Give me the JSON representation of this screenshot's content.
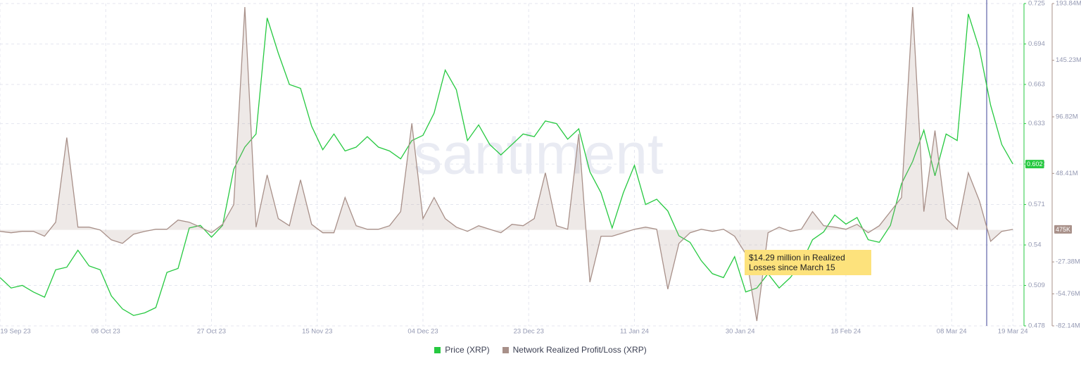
{
  "chart_data": {
    "type": "line",
    "watermark": "santiment",
    "annotation": "$14.29 million in Realized Losses since March 15",
    "x": [
      "2023-09-19",
      "2023-09-21",
      "2023-09-23",
      "2023-09-25",
      "2023-09-27",
      "2023-09-29",
      "2023-10-01",
      "2023-10-03",
      "2023-10-05",
      "2023-10-07",
      "2023-10-09",
      "2023-10-11",
      "2023-10-13",
      "2023-10-15",
      "2023-10-17",
      "2023-10-19",
      "2023-10-21",
      "2023-10-23",
      "2023-10-25",
      "2023-10-27",
      "2023-10-29",
      "2023-10-31",
      "2023-11-02",
      "2023-11-04",
      "2023-11-06",
      "2023-11-08",
      "2023-11-10",
      "2023-11-12",
      "2023-11-14",
      "2023-11-16",
      "2023-11-18",
      "2023-11-20",
      "2023-11-22",
      "2023-11-24",
      "2023-11-26",
      "2023-11-28",
      "2023-11-30",
      "2023-12-02",
      "2023-12-04",
      "2023-12-06",
      "2023-12-08",
      "2023-12-10",
      "2023-12-12",
      "2023-12-14",
      "2023-12-16",
      "2023-12-18",
      "2023-12-20",
      "2023-12-22",
      "2023-12-24",
      "2023-12-26",
      "2023-12-28",
      "2023-12-30",
      "2024-01-01",
      "2024-01-03",
      "2024-01-05",
      "2024-01-07",
      "2024-01-09",
      "2024-01-11",
      "2024-01-13",
      "2024-01-15",
      "2024-01-17",
      "2024-01-19",
      "2024-01-21",
      "2024-01-23",
      "2024-01-25",
      "2024-01-27",
      "2024-01-29",
      "2024-01-31",
      "2024-02-02",
      "2024-02-04",
      "2024-02-06",
      "2024-02-08",
      "2024-02-10",
      "2024-02-12",
      "2024-02-14",
      "2024-02-16",
      "2024-02-18",
      "2024-02-20",
      "2024-02-22",
      "2024-02-24",
      "2024-02-26",
      "2024-02-28",
      "2024-03-01",
      "2024-03-03",
      "2024-03-05",
      "2024-03-07",
      "2024-03-09",
      "2024-03-11",
      "2024-03-13",
      "2024-03-15",
      "2024-03-17",
      "2024-03-19"
    ],
    "series": [
      {
        "name": "Price (XRP)",
        "color": "#26c940",
        "axis": "y",
        "current_label": "0.602",
        "values": [
          0.515,
          0.507,
          0.509,
          0.504,
          0.5,
          0.521,
          0.523,
          0.536,
          0.524,
          0.521,
          0.501,
          0.491,
          0.486,
          0.488,
          0.492,
          0.519,
          0.522,
          0.553,
          0.555,
          0.546,
          0.555,
          0.598,
          0.615,
          0.625,
          0.714,
          0.687,
          0.663,
          0.66,
          0.631,
          0.613,
          0.625,
          0.612,
          0.615,
          0.623,
          0.615,
          0.612,
          0.606,
          0.62,
          0.624,
          0.641,
          0.674,
          0.659,
          0.62,
          0.632,
          0.617,
          0.609,
          0.617,
          0.625,
          0.623,
          0.635,
          0.633,
          0.621,
          0.629,
          0.596,
          0.58,
          0.553,
          0.58,
          0.601,
          0.571,
          0.575,
          0.566,
          0.547,
          0.542,
          0.528,
          0.518,
          0.515,
          0.531,
          0.504,
          0.507,
          0.518,
          0.507,
          0.515,
          0.526,
          0.544,
          0.55,
          0.563,
          0.556,
          0.561,
          0.544,
          0.542,
          0.555,
          0.587,
          0.604,
          0.628,
          0.593,
          0.625,
          0.62,
          0.717,
          0.69,
          0.647,
          0.617,
          0.602
        ]
      },
      {
        "name": "Network Realized Profit/Loss (XRP)",
        "color": "#a89089",
        "axis": "y2",
        "area": true,
        "current_label": "475K",
        "values": [
          -1200000,
          -2400000,
          -1200000,
          -1200000,
          -5400000,
          6600000,
          79100000,
          2400000,
          2400000,
          0,
          -8500000,
          -11500000,
          -3600000,
          -1200000,
          600000,
          600000,
          8500000,
          6600000,
          2400000,
          -2400000,
          4800000,
          21700000,
          190800000,
          2400000,
          47100000,
          9700000,
          3600000,
          42900000,
          4800000,
          -2400000,
          -2400000,
          27800000,
          3600000,
          600000,
          600000,
          3600000,
          15700000,
          91200000,
          9700000,
          27800000,
          9700000,
          2400000,
          -1200000,
          3600000,
          600000,
          -2400000,
          4800000,
          3600000,
          9700000,
          48900000,
          3600000,
          600000,
          82100000,
          -44700000,
          -5400000,
          -5400000,
          -2400000,
          600000,
          2400000,
          600000,
          -50700000,
          -11500000,
          -2400000,
          600000,
          -1200000,
          600000,
          -5400000,
          -20500000,
          -77900000,
          -2400000,
          2400000,
          -1200000,
          600000,
          15700000,
          3600000,
          2400000,
          600000,
          4800000,
          -2400000,
          3600000,
          15700000,
          27800000,
          190800000,
          15700000,
          85100000,
          9700000,
          600000,
          48900000,
          24800000,
          -9700000,
          -1200000,
          475000
        ]
      }
    ],
    "xlim": [
      "2023-09-19",
      "2024-03-21"
    ],
    "xticks": [
      {
        "value": "2023-09-19",
        "label": "19 Sep 23"
      },
      {
        "value": "2023-10-08",
        "label": "08 Oct 23"
      },
      {
        "value": "2023-10-27",
        "label": "27 Oct 23"
      },
      {
        "value": "2023-11-15",
        "label": "15 Nov 23"
      },
      {
        "value": "2023-12-04",
        "label": "04 Dec 23"
      },
      {
        "value": "2023-12-23",
        "label": "23 Dec 23"
      },
      {
        "value": "2024-01-11",
        "label": "11 Jan 24"
      },
      {
        "value": "2024-01-30",
        "label": "30 Jan 24"
      },
      {
        "value": "2024-02-18",
        "label": "18 Feb 24"
      },
      {
        "value": "2024-03-08",
        "label": "08 Mar 24"
      },
      {
        "value": "2024-03-19",
        "label": "19 Mar 24"
      }
    ],
    "ylim": [
      0.478,
      0.725
    ],
    "yticks": [
      0.725,
      0.694,
      0.663,
      0.633,
      0.602,
      0.571,
      0.54,
      0.509,
      0.478
    ],
    "y2lim": [
      -82140000,
      193840000
    ],
    "y2ticks": [
      {
        "value": 193840000,
        "label": "193.84M"
      },
      {
        "value": 145230000,
        "label": "145.23M"
      },
      {
        "value": 96820000,
        "label": "96.82M"
      },
      {
        "value": 48410000,
        "label": "48.41M"
      },
      {
        "value": -27380000,
        "label": "-27.38M"
      },
      {
        "value": -54760000,
        "label": "-54.76M"
      },
      {
        "value": -82140000,
        "label": "-82.14M"
      }
    ],
    "grid": true
  }
}
